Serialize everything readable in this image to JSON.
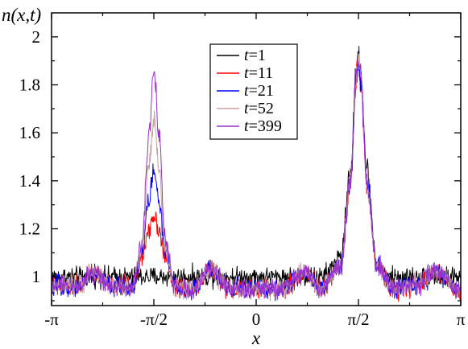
{
  "chart_data": {
    "type": "line",
    "xlabel": "x",
    "ylabel": "n(x,t)",
    "xlim": [
      -3.14159,
      3.14159
    ],
    "ylim": [
      0.88,
      2.1
    ],
    "x_ticks": [
      {
        "value": -3.14159,
        "label": "-π"
      },
      {
        "value": -1.5708,
        "label": "-π/2"
      },
      {
        "value": 0,
        "label": "0"
      },
      {
        "value": 1.5708,
        "label": "π/2"
      },
      {
        "value": 3.14159,
        "label": "π"
      }
    ],
    "y_ticks": [
      {
        "value": 1.0,
        "label": "1"
      },
      {
        "value": 1.2,
        "label": "1.2"
      },
      {
        "value": 1.4,
        "label": "1.4"
      },
      {
        "value": 1.6,
        "label": "1.6"
      },
      {
        "value": 1.8,
        "label": "1.8"
      },
      {
        "value": 2.0,
        "label": "2"
      }
    ],
    "legend_position": "top-center",
    "series": [
      {
        "name": "t=1",
        "legend_var": "t",
        "legend_value": "=1",
        "color": "#000000",
        "x": [
          -3.14,
          -2.5,
          -2.0,
          -1.85,
          -1.7,
          -1.6,
          -1.57,
          -1.54,
          -1.45,
          -1.3,
          -1.0,
          -0.5,
          0.0,
          0.5,
          1.0,
          1.3,
          1.45,
          1.54,
          1.57,
          1.6,
          1.7,
          1.85,
          2.0,
          2.5,
          3.14
        ],
        "y": [
          1.0,
          1.0,
          1.0,
          1.0,
          1.0,
          1.0,
          1.0,
          1.0,
          1.0,
          1.0,
          1.0,
          1.0,
          1.0,
          1.0,
          1.0,
          1.08,
          1.45,
          1.85,
          1.93,
          1.85,
          1.45,
          1.05,
          1.0,
          1.0,
          1.0
        ],
        "noise": 0.02
      },
      {
        "name": "t=11",
        "legend_var": "t",
        "legend_value": "=11",
        "color": "#ff0000",
        "x": [
          -3.14,
          -2.75,
          -2.5,
          -2.2,
          -1.9,
          -1.75,
          -1.65,
          -1.57,
          -1.49,
          -1.4,
          -1.25,
          -1.0,
          -0.7,
          -0.4,
          0.0,
          0.4,
          0.75,
          1.0,
          1.3,
          1.45,
          1.54,
          1.57,
          1.6,
          1.7,
          1.85,
          2.1,
          2.5,
          2.75,
          3.14
        ],
        "y": [
          0.96,
          0.96,
          1.02,
          0.96,
          0.96,
          1.08,
          1.2,
          1.26,
          1.2,
          1.08,
          0.96,
          0.94,
          1.03,
          0.95,
          0.95,
          0.95,
          1.02,
          0.95,
          1.05,
          1.4,
          1.82,
          1.9,
          1.82,
          1.4,
          1.05,
          0.95,
          0.97,
          1.02,
          0.94
        ],
        "noise": 0.02
      },
      {
        "name": "t=21",
        "legend_var": "t",
        "legend_value": "=21",
        "color": "#0000ff",
        "x": [
          -3.14,
          -2.75,
          -2.5,
          -2.2,
          -1.9,
          -1.75,
          -1.65,
          -1.57,
          -1.49,
          -1.4,
          -1.25,
          -1.0,
          -0.7,
          -0.4,
          0.0,
          0.4,
          0.75,
          1.0,
          1.3,
          1.45,
          1.54,
          1.57,
          1.6,
          1.7,
          1.85,
          2.1,
          2.5,
          2.75,
          3.14
        ],
        "y": [
          0.96,
          0.96,
          1.02,
          0.96,
          0.96,
          1.1,
          1.32,
          1.44,
          1.32,
          1.1,
          0.96,
          0.94,
          1.03,
          0.95,
          0.95,
          0.95,
          1.02,
          0.95,
          1.05,
          1.4,
          1.84,
          1.92,
          1.84,
          1.4,
          1.05,
          0.95,
          0.97,
          1.02,
          0.94
        ],
        "noise": 0.02
      },
      {
        "name": "t=52",
        "legend_var": "t",
        "legend_value": "=52",
        "color": "#c8a0a0",
        "x": [
          -3.14,
          -2.75,
          -2.5,
          -2.2,
          -1.9,
          -1.75,
          -1.65,
          -1.57,
          -1.49,
          -1.4,
          -1.25,
          -1.0,
          -0.7,
          -0.4,
          0.0,
          0.4,
          0.75,
          1.0,
          1.3,
          1.45,
          1.54,
          1.57,
          1.6,
          1.7,
          1.85,
          2.1,
          2.5,
          2.75,
          3.14
        ],
        "y": [
          0.96,
          0.96,
          1.02,
          0.96,
          0.96,
          1.12,
          1.45,
          1.65,
          1.45,
          1.12,
          0.96,
          0.94,
          1.03,
          0.95,
          0.95,
          0.95,
          1.02,
          0.95,
          1.05,
          1.4,
          1.84,
          1.92,
          1.84,
          1.4,
          1.05,
          0.95,
          0.97,
          1.02,
          0.94
        ],
        "noise": 0.02
      },
      {
        "name": "t=399",
        "legend_var": "t",
        "legend_value": "=399",
        "color": "#9932cc",
        "x": [
          -3.14,
          -2.75,
          -2.5,
          -2.2,
          -1.9,
          -1.75,
          -1.65,
          -1.57,
          -1.49,
          -1.4,
          -1.25,
          -1.0,
          -0.7,
          -0.4,
          0.0,
          0.4,
          0.75,
          1.0,
          1.3,
          1.45,
          1.54,
          1.57,
          1.6,
          1.7,
          1.85,
          2.1,
          2.5,
          2.75,
          3.14
        ],
        "y": [
          0.96,
          0.96,
          1.02,
          0.96,
          0.96,
          1.15,
          1.6,
          1.86,
          1.6,
          1.15,
          0.96,
          0.94,
          1.03,
          0.95,
          0.95,
          0.95,
          1.02,
          0.95,
          1.05,
          1.4,
          1.84,
          1.92,
          1.84,
          1.4,
          1.05,
          0.95,
          0.97,
          1.02,
          0.94
        ],
        "noise": 0.02
      }
    ]
  }
}
